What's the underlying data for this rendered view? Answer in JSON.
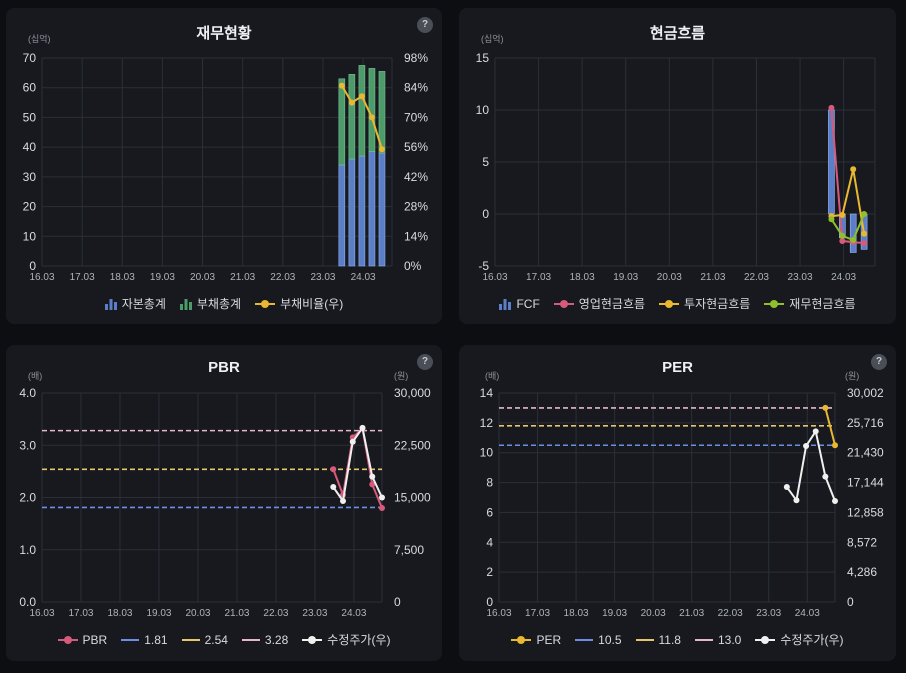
{
  "chart_data": [
    {
      "id": "finance",
      "type": "bar",
      "title": "재무현황",
      "y_unit": "(십억)",
      "x_ticks": [
        "16.03",
        "17.03",
        "18.03",
        "19.03",
        "20.03",
        "21.03",
        "22.03",
        "23.03",
        "24.03"
      ],
      "y_ticks": [
        "0",
        "10",
        "20",
        "30",
        "40",
        "50",
        "60",
        "70"
      ],
      "y2_ticks": [
        "0%",
        "14%",
        "28%",
        "42%",
        "56%",
        "70%",
        "84%",
        "98%"
      ],
      "ylim": [
        0,
        70
      ],
      "y2lim": [
        0,
        98
      ],
      "stacked": true,
      "bar_x": [
        23.5,
        23.75,
        24.0,
        24.25,
        24.5
      ],
      "series": [
        {
          "name": "자본총계",
          "type": "bar",
          "color": "#5b7fc7",
          "values": [
            34,
            36,
            37,
            38.5,
            38
          ]
        },
        {
          "name": "부채총계",
          "type": "bar",
          "color": "#4e9b6a",
          "values": [
            29,
            28.5,
            30.5,
            28,
            27.5
          ]
        },
        {
          "name": "부채비율(우)",
          "type": "line",
          "axis": "right",
          "color": "#e8b830",
          "values": [
            85,
            77,
            80,
            70,
            55
          ]
        }
      ]
    },
    {
      "id": "cashflow",
      "type": "bar",
      "title": "현금흐름",
      "y_unit": "(십억)",
      "x_ticks": [
        "16.03",
        "17.03",
        "18.03",
        "19.03",
        "20.03",
        "21.03",
        "22.03",
        "23.03",
        "24.03"
      ],
      "y_ticks": [
        "-5",
        "0",
        "5",
        "10",
        "15"
      ],
      "ylim": [
        -5,
        15
      ],
      "bar_x": [
        23.75,
        24.0,
        24.25,
        24.5
      ],
      "series": [
        {
          "name": "FCF",
          "type": "bar",
          "color": "#5b7fc7",
          "values": [
            10,
            -2.3,
            -3.7,
            -3.4
          ]
        },
        {
          "name": "영업현금흐름",
          "type": "line",
          "color": "#d65a7a",
          "values": [
            10.2,
            -2.6,
            -2.7,
            -2.8
          ]
        },
        {
          "name": "투자현금흐름",
          "type": "line",
          "color": "#e8b830",
          "values": [
            -0.2,
            -0.1,
            4.3,
            -1.9
          ]
        },
        {
          "name": "재무현금흐름",
          "type": "line",
          "color": "#8fbf2a",
          "values": [
            -0.5,
            -2.1,
            -2.5,
            0
          ]
        }
      ]
    },
    {
      "id": "pbr",
      "type": "line",
      "title": "PBR",
      "y_unit": "(배)",
      "y2_unit": "(원)",
      "x_ticks": [
        "16.03",
        "17.03",
        "18.03",
        "19.03",
        "20.03",
        "21.03",
        "22.03",
        "23.03",
        "24.03"
      ],
      "y_ticks": [
        "0.0",
        "1.0",
        "2.0",
        "3.0",
        "4.0"
      ],
      "y2_ticks": [
        "0",
        "7,500",
        "15,000",
        "22,500",
        "30,000"
      ],
      "ylim": [
        0,
        4
      ],
      "y2lim": [
        0,
        30000
      ],
      "bands": [
        {
          "name": "1.81",
          "value": 1.81,
          "color": "#6b8ee8"
        },
        {
          "name": "2.54",
          "value": 2.54,
          "color": "#e8c46a"
        },
        {
          "name": "3.28",
          "value": 3.28,
          "color": "#e8b7c6"
        }
      ],
      "x": [
        23.5,
        23.75,
        24.0,
        24.25,
        24.5,
        24.75
      ],
      "series": [
        {
          "name": "PBR",
          "color": "#d65a7a",
          "values": [
            2.54,
            2.05,
            3.15,
            3.32,
            2.25,
            1.8
          ]
        },
        {
          "name": "수정주가(우)",
          "axis": "right",
          "color": "#f0f0f0",
          "values": [
            16500,
            14500,
            23000,
            25000,
            18000,
            15000
          ]
        }
      ]
    },
    {
      "id": "per",
      "type": "line",
      "title": "PER",
      "y_unit": "(배)",
      "y2_unit": "(원)",
      "x_ticks": [
        "16.03",
        "17.03",
        "18.03",
        "19.03",
        "20.03",
        "21.03",
        "22.03",
        "23.03",
        "24.03"
      ],
      "y_ticks": [
        "0",
        "2",
        "4",
        "6",
        "8",
        "10",
        "12",
        "14"
      ],
      "y2_ticks": [
        "0",
        "4,286",
        "8,572",
        "12,858",
        "17,144",
        "21,430",
        "25,716",
        "30,002"
      ],
      "ylim": [
        0,
        14
      ],
      "y2lim": [
        0,
        30002
      ],
      "bands": [
        {
          "name": "10.5",
          "value": 10.5,
          "color": "#6b8ee8"
        },
        {
          "name": "11.8",
          "value": 11.8,
          "color": "#e8c46a"
        },
        {
          "name": "13.0",
          "value": 13.0,
          "color": "#e8b7c6"
        }
      ],
      "x": [
        23.5,
        23.75,
        24.0,
        24.25,
        24.5,
        24.75
      ],
      "series": [
        {
          "name": "PER",
          "color": "#e8b830",
          "values": [
            null,
            null,
            null,
            null,
            13.0,
            10.5
          ]
        },
        {
          "name": "수정주가(우)",
          "axis": "right",
          "color": "#f0f0f0",
          "values": [
            16500,
            14600,
            22400,
            24500,
            18000,
            14500
          ]
        }
      ]
    }
  ]
}
